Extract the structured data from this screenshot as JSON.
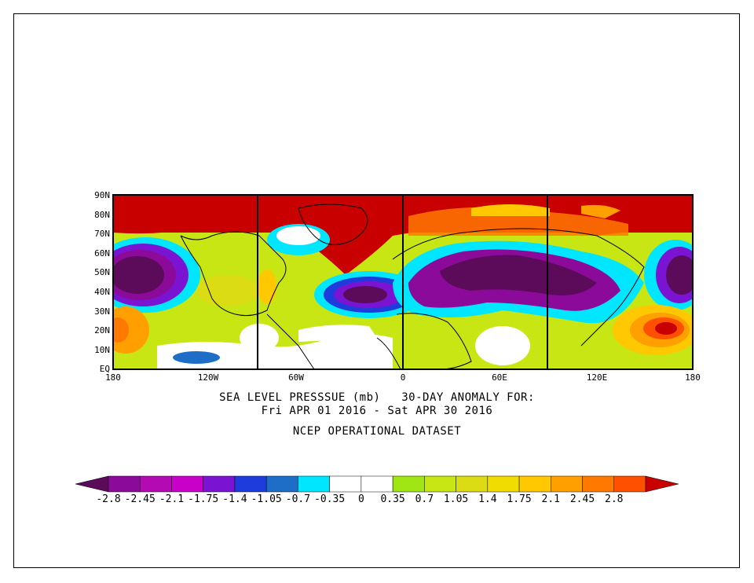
{
  "title": {
    "line1": "SEA LEVEL PRESSSUE (mb)   30-DAY ANOMALY FOR:",
    "line2": "Fri APR 01 2016 - Sat APR 30 2016",
    "dataset": "NCEP OPERATIONAL DATASET"
  },
  "axes": {
    "y_ticks": [
      "90N",
      "80N",
      "70N",
      "60N",
      "50N",
      "40N",
      "30N",
      "20N",
      "10N",
      "EQ"
    ],
    "x_ticks": [
      "180",
      "120W",
      "60W",
      "0",
      "60E",
      "120E",
      "180"
    ]
  },
  "colorbar": {
    "labels": [
      "-2.8",
      "-2.45",
      "-2.1",
      "-1.75",
      "-1.4",
      "-1.05",
      "-0.7",
      "-0.35",
      "0",
      "0.35",
      "0.7",
      "1.05",
      "1.4",
      "1.75",
      "2.1",
      "2.45",
      "2.8"
    ],
    "colors": [
      "#5c0a5a",
      "#8c0a9a",
      "#b40ab4",
      "#c800c8",
      "#7a14d2",
      "#1e3cdc",
      "#1e6ec8",
      "#00e6ff",
      "#ffffff",
      "#ffffff",
      "#a0e614",
      "#c8e614",
      "#dcdc14",
      "#f0dc00",
      "#ffc800",
      "#ffa000",
      "#ff7800",
      "#ff5000",
      "#c80000"
    ]
  },
  "colors": {
    "strong_positive": "#c80000",
    "positive": "#ff7800",
    "weak_positive": "#a0e614",
    "neutral": "#ffffff",
    "weak_negative": "#00e6ff",
    "negative": "#1e3cdc",
    "strong_negative": "#5c0a5a"
  }
}
